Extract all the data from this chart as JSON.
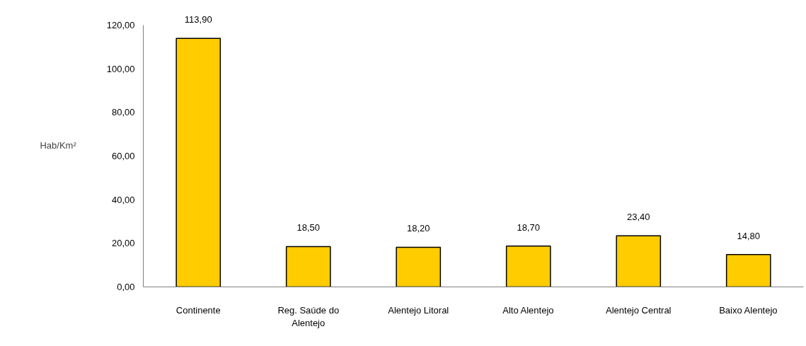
{
  "chart_data": {
    "type": "bar",
    "ylabel": "Hab/Km²",
    "categories": [
      "Continente",
      "Reg. Saúde do Alentejo",
      "Alentejo Litoral",
      "Alto Alentejo",
      "Alentejo Central",
      "Baixo Alentejo"
    ],
    "values": [
      113.9,
      18.5,
      18.2,
      18.7,
      23.4,
      14.8
    ],
    "value_labels": [
      "113,90",
      "18,50",
      "18,20",
      "18,70",
      "23,40",
      "14,80"
    ],
    "color": "#ffcc00",
    "ylim": [
      0,
      120
    ],
    "yticks": [
      {
        "value": 0,
        "label": "0,00"
      },
      {
        "value": 20,
        "label": "20,00"
      },
      {
        "value": 40,
        "label": "40,00"
      },
      {
        "value": 60,
        "label": "60,00"
      },
      {
        "value": 80,
        "label": "80,00"
      },
      {
        "value": 100,
        "label": "100,00"
      },
      {
        "value": 120,
        "label": "120,00"
      }
    ],
    "grid": false,
    "legend": false
  }
}
